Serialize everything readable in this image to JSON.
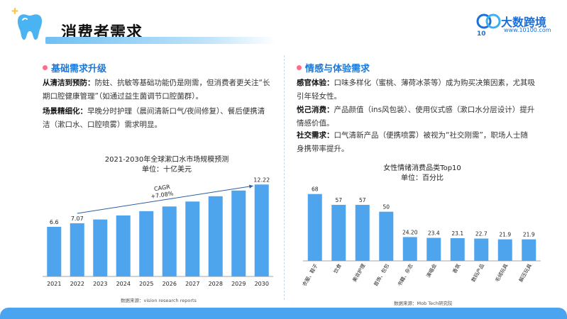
{
  "header": {
    "title": "消费者需求",
    "logo_name": "大数跨境",
    "logo_url": "www.10100.com"
  },
  "left": {
    "section_title": "基础需求升级",
    "p1_label": "从清洁到预防：",
    "p1_text_a": "防蛀、抗敏等基础功能仍是刚需，但消费者更关注“长",
    "p1_text_b": "期口腔健康管理”（如通过益生菌调节口腔菌群）。",
    "p2_label": "场景精细化：",
    "p2_text_a": "早晚分时护理（晨间清新口气/夜间修复）、餐后便携清",
    "p2_text_b": "洁（漱口水、口腔喷雾）需求明显。",
    "chart_title": "2021-2030年全球漱口水市场规模预测",
    "chart_unit": "单位：十亿美元",
    "cagr_label": "CAGR",
    "cagr_value": "+7.08%",
    "source": "数据来源：vision research reports"
  },
  "right": {
    "section_title": "情感与体验需求",
    "p1_label": "感官体验：",
    "p1_text_a": "口味多样化（蜜桃、薄荷冰茶等）成为购买决策因素，尤其吸",
    "p1_text_b": "引年轻女性。",
    "p2_label": "悦己消费：",
    "p2_text_a": "产品颜值（ins风包装）、使用仪式感（漱口水分层设计）提升",
    "p2_text_b": "情感价值。",
    "p3_label": "社交需求：",
    "p3_text_a": "口气清新产品（便携喷雾）被视为“社交刚需”，职场人士随",
    "p3_text_b": "身携带率提升。",
    "chart_title": "女性情绪消费品类Top10",
    "chart_unit": "单位：百分比",
    "source": "数据来源：Mob Tech研究院"
  },
  "colors": {
    "accent": "#1a78d8",
    "bar": "#4ea5ee",
    "bottom_bar": "#4aa4f0"
  },
  "chart_data": [
    {
      "type": "bar",
      "title": "2021-2030年全球漱口水市场规模预测",
      "subtitle": "单位：十亿美元",
      "categories": [
        "2021",
        "2022",
        "2023",
        "2024",
        "2025",
        "2026",
        "2027",
        "2028",
        "2029",
        "2030"
      ],
      "values": [
        6.6,
        7.07,
        7.57,
        8.11,
        8.68,
        9.3,
        9.96,
        10.66,
        11.42,
        12.22
      ],
      "labels": [
        "6.6",
        "7.07",
        "",
        "",
        "",
        "",
        "",
        "",
        "",
        "12.22"
      ],
      "ylim": [
        0,
        13
      ],
      "annotation": "CAGR +7.08%"
    },
    {
      "type": "bar",
      "title": "女性情绪消费品类Top10",
      "subtitle": "单位：百分比",
      "categories": [
        "衣服、鞋子",
        "饮食",
        "美妆护理",
        "首饰、包包",
        "书籍、杂志",
        "演唱会",
        "香氛",
        "数码产品",
        "毛绒玩具",
        "解压玩具"
      ],
      "values": [
        68,
        57,
        57,
        50,
        24.2,
        23.4,
        23.1,
        22.7,
        21.9,
        21.9
      ],
      "labels": [
        "68",
        "57",
        "57",
        "50",
        "24.20",
        "23.4",
        "23.1",
        "22.7",
        "21.9",
        "21.9"
      ],
      "ylim": [
        0,
        75
      ]
    }
  ]
}
